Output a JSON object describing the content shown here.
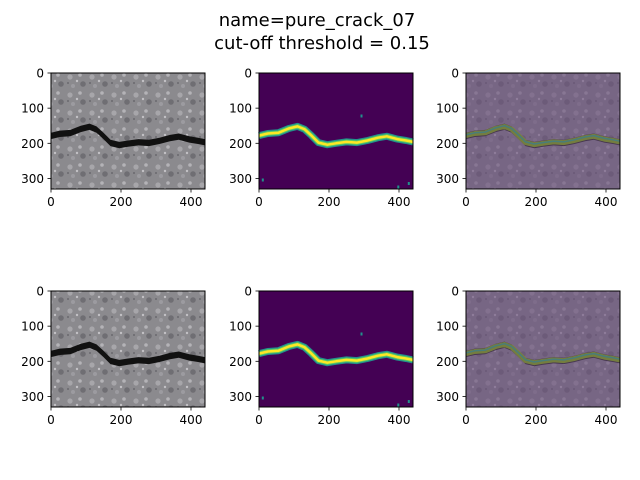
{
  "figure": {
    "title_line1": "name=pure_crack_07",
    "title_line2": "cut-off threshold = 0.15"
  },
  "panels": [
    {
      "kind": "photo"
    },
    {
      "kind": "mask"
    },
    {
      "kind": "overlay"
    },
    {
      "kind": "photo"
    },
    {
      "kind": "mask"
    },
    {
      "kind": "overlay"
    }
  ],
  "axes": {
    "x_ticks": [
      "0",
      "200",
      "400"
    ],
    "y_ticks": [
      "0",
      "100",
      "200",
      "300"
    ]
  },
  "colors": {
    "asphalt": "#8a8a8e",
    "crack": "#111111",
    "mask_background": "#440154",
    "mask_yellow": "#fde725",
    "mask_green": "#5ec962",
    "mask_teal": "#21918c",
    "overlay_tint": "#6b4f7d"
  }
}
